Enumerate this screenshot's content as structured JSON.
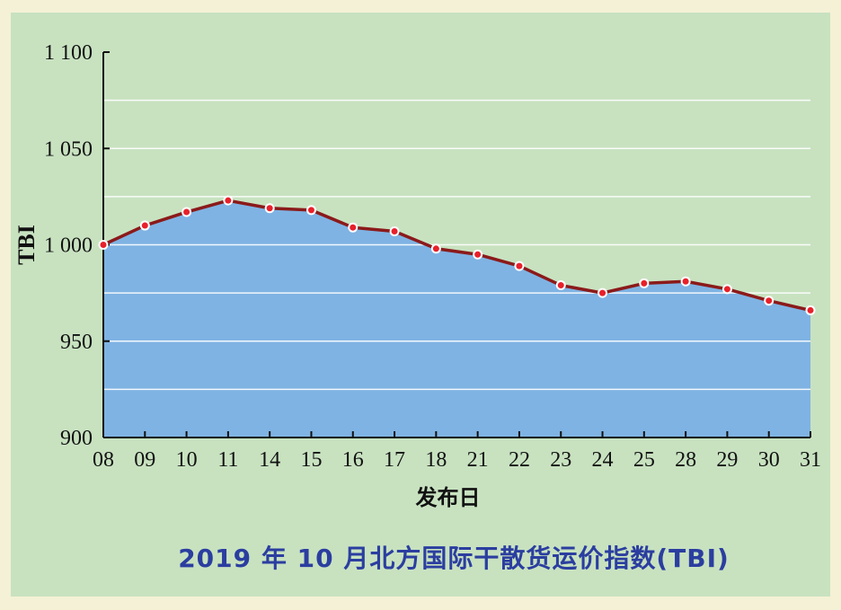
{
  "chart_data": {
    "type": "area",
    "title": "2019 年 10 月北方国际干散货运价指数(TBI)",
    "xlabel": "发布日",
    "ylabel": "TBI",
    "categories": [
      "08",
      "09",
      "10",
      "11",
      "14",
      "15",
      "16",
      "17",
      "18",
      "21",
      "22",
      "23",
      "24",
      "25",
      "28",
      "29",
      "30",
      "31"
    ],
    "values": [
      1000,
      1010,
      1017,
      1023,
      1019,
      1018,
      1009,
      1007,
      998,
      995,
      989,
      979,
      975,
      980,
      981,
      977,
      971,
      966
    ],
    "ylim": [
      900,
      1100
    ],
    "yticks": [
      900,
      950,
      1000,
      1050,
      1100
    ],
    "ytick_labels": [
      "900",
      "950",
      "1 000",
      "1 050",
      "1 100"
    ],
    "grid": true,
    "colors": {
      "fill": "#7fb3e3",
      "line": "#8b1a1a",
      "marker": "#e8202a",
      "grid": "#ffffff",
      "title": "#2b3ea0"
    }
  }
}
